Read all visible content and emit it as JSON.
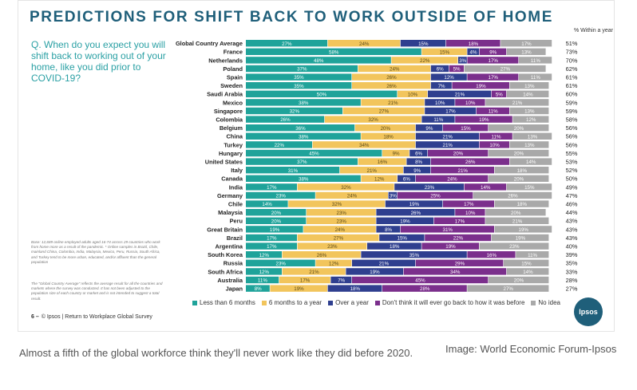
{
  "chart_data": {
    "type": "bar",
    "stacked": true,
    "orientation": "horizontal",
    "title": "PREDICTIONS FOR SHIFT BACK TO WORK OUTSIDE OF HOME",
    "question": "Q. When do you expect you will shift back to working out of your home, like you did prior to COVID-19?",
    "right_column_header": "% Within a year",
    "categories": [
      "Global Country Average",
      "France",
      "Netherlands",
      "Poland",
      "Spain",
      "Sweden",
      "Saudi Arabia",
      "Mexico",
      "Singapore",
      "Colombia",
      "Belgium",
      "China",
      "Turkey",
      "Hungary",
      "United States",
      "Italy",
      "Canada",
      "India",
      "Germany",
      "Chile",
      "Malaysia",
      "Peru",
      "Great Britain",
      "Brazil",
      "Argentina",
      "South Korea",
      "Russia",
      "South Africa",
      "Australia",
      "Japan"
    ],
    "series": [
      {
        "name": "Less than 6 months",
        "color": "#1fa39a",
        "values": [
          27,
          58,
          48,
          37,
          35,
          35,
          50,
          38,
          32,
          26,
          36,
          38,
          22,
          45,
          37,
          31,
          38,
          17,
          23,
          14,
          20,
          20,
          19,
          17,
          17,
          12,
          23,
          12,
          11,
          8
        ]
      },
      {
        "name": "6 months to a year",
        "color": "#f2c55c",
        "values": [
          24,
          15,
          22,
          24,
          26,
          26,
          10,
          21,
          27,
          32,
          20,
          18,
          34,
          9,
          16,
          21,
          12,
          32,
          24,
          32,
          23,
          23,
          24,
          27,
          23,
          26,
          12,
          21,
          17,
          19
        ]
      },
      {
        "name": "Over a year",
        "color": "#2f3f8f",
        "values": [
          15,
          4,
          3,
          6,
          12,
          7,
          21,
          10,
          17,
          11,
          9,
          21,
          21,
          6,
          8,
          9,
          6,
          23,
          3,
          19,
          26,
          19,
          8,
          15,
          18,
          35,
          21,
          19,
          7,
          18
        ]
      },
      {
        "name": "Don't think it will ever go back to how it was before",
        "color": "#7b2f8c",
        "values": [
          18,
          9,
          17,
          5,
          17,
          19,
          5,
          10,
          11,
          19,
          15,
          11,
          10,
          20,
          26,
          21,
          24,
          14,
          25,
          17,
          10,
          17,
          31,
          22,
          19,
          16,
          29,
          34,
          45,
          28
        ]
      },
      {
        "name": "No idea",
        "color": "#a9a9a9",
        "values": [
          17,
          13,
          11,
          27,
          11,
          13,
          14,
          21,
          13,
          12,
          20,
          13,
          13,
          20,
          14,
          18,
          20,
          15,
          26,
          18,
          20,
          21,
          19,
          19,
          23,
          11,
          15,
          14,
          20,
          27
        ]
      }
    ],
    "within_a_year": [
      "51%",
      "73%",
      "70%",
      "62%",
      "61%",
      "61%",
      "60%",
      "59%",
      "59%",
      "58%",
      "56%",
      "56%",
      "56%",
      "55%",
      "53%",
      "52%",
      "50%",
      "49%",
      "47%",
      "46%",
      "44%",
      "43%",
      "43%",
      "43%",
      "40%",
      "39%",
      "35%",
      "33%",
      "28%",
      "27%"
    ],
    "xlim": [
      0,
      100
    ],
    "legend_position": "bottom"
  },
  "notes": {
    "base": "Base: 12,689 online employed adults aged 16-74 across 29 countries who work from home more as a result of the pandemic. * Online samples in Brazil, Chile, mainland China, Colombia, India, Malaysia, Mexico, Peru, Russia, South Africa, and Turkey tend to be more urban, educated, and/or affluent than the general population",
    "gca": "The \"Global Country Average\" reflects the average result for all the countries and markets where the survey was conducted. It has not been adjusted to the population size of each country or market and is not intended to suggest a total result."
  },
  "footer": {
    "page": "6 –",
    "text": "© Ipsos | Return to Workplace Global Survey"
  },
  "logo": "Ipsos",
  "caption": "Almost a fifth of the global workforce think they'll never work like they did before 2020.",
  "credit": "Image: World Economic Forum-Ipsos"
}
